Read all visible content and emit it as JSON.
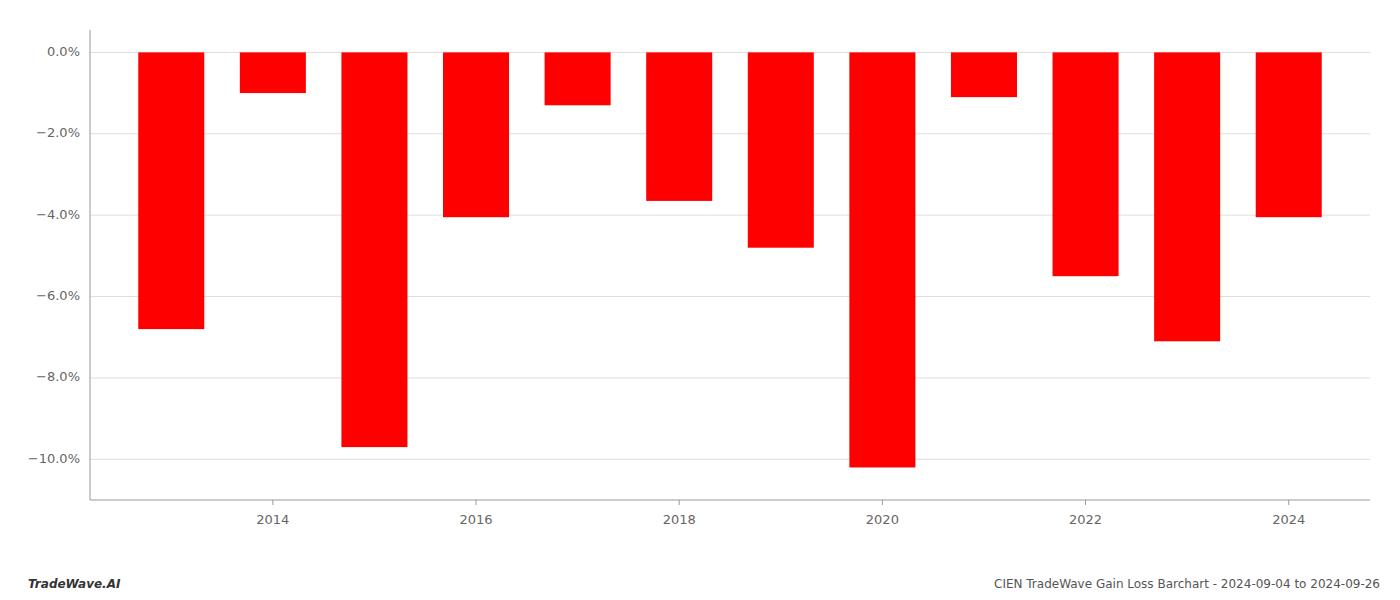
{
  "chart_data": {
    "type": "bar",
    "x": [
      2013,
      2014,
      2015,
      2016,
      2017,
      2018,
      2019,
      2020,
      2021,
      2022,
      2023,
      2024
    ],
    "values": [
      -6.8,
      -1.0,
      -9.7,
      -4.05,
      -1.3,
      -3.65,
      -4.8,
      -10.2,
      -1.1,
      -5.5,
      -7.1,
      -4.05
    ],
    "color": "#ff0000",
    "xlim": [
      2012.2,
      2024.8
    ],
    "xticks": [
      2014,
      2016,
      2018,
      2020,
      2022,
      2024
    ],
    "ylim": [
      -11.0,
      0.55
    ],
    "yticks": [
      {
        "value": 0.0,
        "label": "0.0%"
      },
      {
        "value": -2.0,
        "label": "−2.0%"
      },
      {
        "value": -4.0,
        "label": "−4.0%"
      },
      {
        "value": -6.0,
        "label": "−6.0%"
      },
      {
        "value": -8.0,
        "label": "−8.0%"
      },
      {
        "value": -10.0,
        "label": "−10.0%"
      }
    ],
    "grid": true,
    "annotations": [
      "TradeWave.AI",
      "CIEN TradeWave Gain Loss Barchart - 2024-09-04 to 2024-09-26"
    ]
  }
}
